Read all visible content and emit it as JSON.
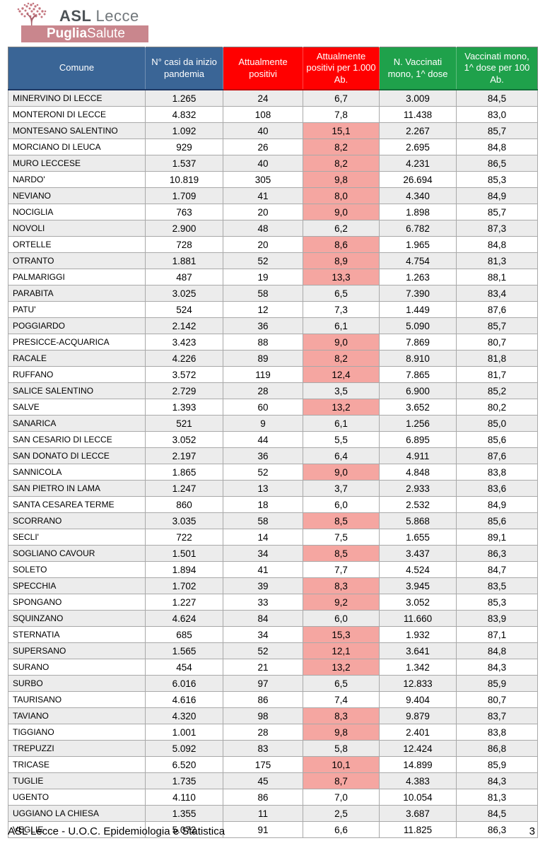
{
  "logo": {
    "asl_bold": "ASL",
    "asl_rest": "Lecce",
    "band_bold": "Puglia",
    "band_rest": "Salute",
    "band_color": "#c9868d",
    "tree_color": "#c4767f"
  },
  "table": {
    "headers": [
      {
        "label": "Comune",
        "bg": "#3a6596",
        "border": "#1f3864"
      },
      {
        "label": "N° casi da inizio pandemia",
        "bg": "#3a6596",
        "border": "#1f3864"
      },
      {
        "label": "Attualmente positivi",
        "bg": "#ff0000",
        "border": "#c00000"
      },
      {
        "label": "Attualmente positivi per 1.000 Ab.",
        "bg": "#ff0000",
        "border": "#c00000"
      },
      {
        "label": "N. Vaccinati mono, 1^ dose",
        "bg": "#1fa14b",
        "border": "#14703a"
      },
      {
        "label": "Vaccinati mono, 1^ dose per 100 Ab.",
        "bg": "#1fa14b",
        "border": "#14703a"
      }
    ],
    "highlight_color": "#f5a6a1",
    "stripe_color": "#ececec",
    "rows": [
      {
        "cells": [
          "MINERVINO DI LECCE",
          "1.265",
          "24",
          "6,7",
          "3.009",
          "84,5"
        ],
        "hl": false
      },
      {
        "cells": [
          "MONTERONI DI LECCE",
          "4.832",
          "108",
          "7,8",
          "11.438",
          "83,0"
        ],
        "hl": false
      },
      {
        "cells": [
          "MONTESANO SALENTINO",
          "1.092",
          "40",
          "15,1",
          "2.267",
          "85,7"
        ],
        "hl": true
      },
      {
        "cells": [
          "MORCIANO DI LEUCA",
          "929",
          "26",
          "8,2",
          "2.695",
          "84,8"
        ],
        "hl": true
      },
      {
        "cells": [
          "MURO LECCESE",
          "1.537",
          "40",
          "8,2",
          "4.231",
          "86,5"
        ],
        "hl": true
      },
      {
        "cells": [
          "NARDO'",
          "10.819",
          "305",
          "9,8",
          "26.694",
          "85,3"
        ],
        "hl": true
      },
      {
        "cells": [
          "NEVIANO",
          "1.709",
          "41",
          "8,0",
          "4.340",
          "84,9"
        ],
        "hl": true
      },
      {
        "cells": [
          "NOCIGLIA",
          "763",
          "20",
          "9,0",
          "1.898",
          "85,7"
        ],
        "hl": true
      },
      {
        "cells": [
          "NOVOLI",
          "2.900",
          "48",
          "6,2",
          "6.782",
          "87,3"
        ],
        "hl": false
      },
      {
        "cells": [
          "ORTELLE",
          "728",
          "20",
          "8,6",
          "1.965",
          "84,8"
        ],
        "hl": true
      },
      {
        "cells": [
          "OTRANTO",
          "1.881",
          "52",
          "8,9",
          "4.754",
          "81,3"
        ],
        "hl": true
      },
      {
        "cells": [
          "PALMARIGGI",
          "487",
          "19",
          "13,3",
          "1.263",
          "88,1"
        ],
        "hl": true
      },
      {
        "cells": [
          "PARABITA",
          "3.025",
          "58",
          "6,5",
          "7.390",
          "83,4"
        ],
        "hl": false
      },
      {
        "cells": [
          "PATU'",
          "524",
          "12",
          "7,3",
          "1.449",
          "87,6"
        ],
        "hl": false
      },
      {
        "cells": [
          "POGGIARDO",
          "2.142",
          "36",
          "6,1",
          "5.090",
          "85,7"
        ],
        "hl": false
      },
      {
        "cells": [
          "PRESICCE-ACQUARICA",
          "3.423",
          "88",
          "9,0",
          "7.869",
          "80,7"
        ],
        "hl": true
      },
      {
        "cells": [
          "RACALE",
          "4.226",
          "89",
          "8,2",
          "8.910",
          "81,8"
        ],
        "hl": true
      },
      {
        "cells": [
          "RUFFANO",
          "3.572",
          "119",
          "12,4",
          "7.865",
          "81,7"
        ],
        "hl": true
      },
      {
        "cells": [
          "SALICE SALENTINO",
          "2.729",
          "28",
          "3,5",
          "6.900",
          "85,2"
        ],
        "hl": false
      },
      {
        "cells": [
          "SALVE",
          "1.393",
          "60",
          "13,2",
          "3.652",
          "80,2"
        ],
        "hl": true
      },
      {
        "cells": [
          "SANARICA",
          "521",
          "9",
          "6,1",
          "1.256",
          "85,0"
        ],
        "hl": false
      },
      {
        "cells": [
          "SAN CESARIO DI LECCE",
          "3.052",
          "44",
          "5,5",
          "6.895",
          "85,6"
        ],
        "hl": false
      },
      {
        "cells": [
          "SAN DONATO DI LECCE",
          "2.197",
          "36",
          "6,4",
          "4.911",
          "87,6"
        ],
        "hl": false
      },
      {
        "cells": [
          "SANNICOLA",
          "1.865",
          "52",
          "9,0",
          "4.848",
          "83,8"
        ],
        "hl": true
      },
      {
        "cells": [
          "SAN PIETRO IN LAMA",
          "1.247",
          "13",
          "3,7",
          "2.933",
          "83,6"
        ],
        "hl": false
      },
      {
        "cells": [
          "SANTA CESAREA TERME",
          "860",
          "18",
          "6,0",
          "2.532",
          "84,9"
        ],
        "hl": false
      },
      {
        "cells": [
          "SCORRANO",
          "3.035",
          "58",
          "8,5",
          "5.868",
          "85,6"
        ],
        "hl": true
      },
      {
        "cells": [
          "SECLI'",
          "722",
          "14",
          "7,5",
          "1.655",
          "89,1"
        ],
        "hl": false
      },
      {
        "cells": [
          "SOGLIANO CAVOUR",
          "1.501",
          "34",
          "8,5",
          "3.437",
          "86,3"
        ],
        "hl": true
      },
      {
        "cells": [
          "SOLETO",
          "1.894",
          "41",
          "7,7",
          "4.524",
          "84,7"
        ],
        "hl": false
      },
      {
        "cells": [
          "SPECCHIA",
          "1.702",
          "39",
          "8,3",
          "3.945",
          "83,5"
        ],
        "hl": true
      },
      {
        "cells": [
          "SPONGANO",
          "1.227",
          "33",
          "9,2",
          "3.052",
          "85,3"
        ],
        "hl": true
      },
      {
        "cells": [
          "SQUINZANO",
          "4.624",
          "84",
          "6,0",
          "11.660",
          "83,9"
        ],
        "hl": false
      },
      {
        "cells": [
          "STERNATIA",
          "685",
          "34",
          "15,3",
          "1.932",
          "87,1"
        ],
        "hl": true
      },
      {
        "cells": [
          "SUPERSANO",
          "1.565",
          "52",
          "12,1",
          "3.641",
          "84,8"
        ],
        "hl": true
      },
      {
        "cells": [
          "SURANO",
          "454",
          "21",
          "13,2",
          "1.342",
          "84,3"
        ],
        "hl": true
      },
      {
        "cells": [
          "SURBO",
          "6.016",
          "97",
          "6,5",
          "12.833",
          "85,9"
        ],
        "hl": false
      },
      {
        "cells": [
          "TAURISANO",
          "4.616",
          "86",
          "7,4",
          "9.404",
          "80,7"
        ],
        "hl": false
      },
      {
        "cells": [
          "TAVIANO",
          "4.320",
          "98",
          "8,3",
          "9.879",
          "83,7"
        ],
        "hl": true
      },
      {
        "cells": [
          "TIGGIANO",
          "1.001",
          "28",
          "9,8",
          "2.401",
          "83,8"
        ],
        "hl": true
      },
      {
        "cells": [
          "TREPUZZI",
          "5.092",
          "83",
          "5,8",
          "12.424",
          "86,8"
        ],
        "hl": false
      },
      {
        "cells": [
          "TRICASE",
          "6.520",
          "175",
          "10,1",
          "14.899",
          "85,9"
        ],
        "hl": true
      },
      {
        "cells": [
          "TUGLIE",
          "1.735",
          "45",
          "8,7",
          "4.383",
          "84,3"
        ],
        "hl": true
      },
      {
        "cells": [
          "UGENTO",
          "4.110",
          "86",
          "7,0",
          "10.054",
          "81,3"
        ],
        "hl": false
      },
      {
        "cells": [
          "UGGIANO LA CHIESA",
          "1.355",
          "11",
          "2,5",
          "3.687",
          "84,5"
        ],
        "hl": false
      },
      {
        "cells": [
          "VEGLIE",
          "5.072",
          "91",
          "6,6",
          "11.825",
          "86,3"
        ],
        "hl": false
      }
    ]
  },
  "footer": {
    "left": "ASL Lecce - U.O.C. Epidemiologia e Statistica",
    "page": "3"
  }
}
